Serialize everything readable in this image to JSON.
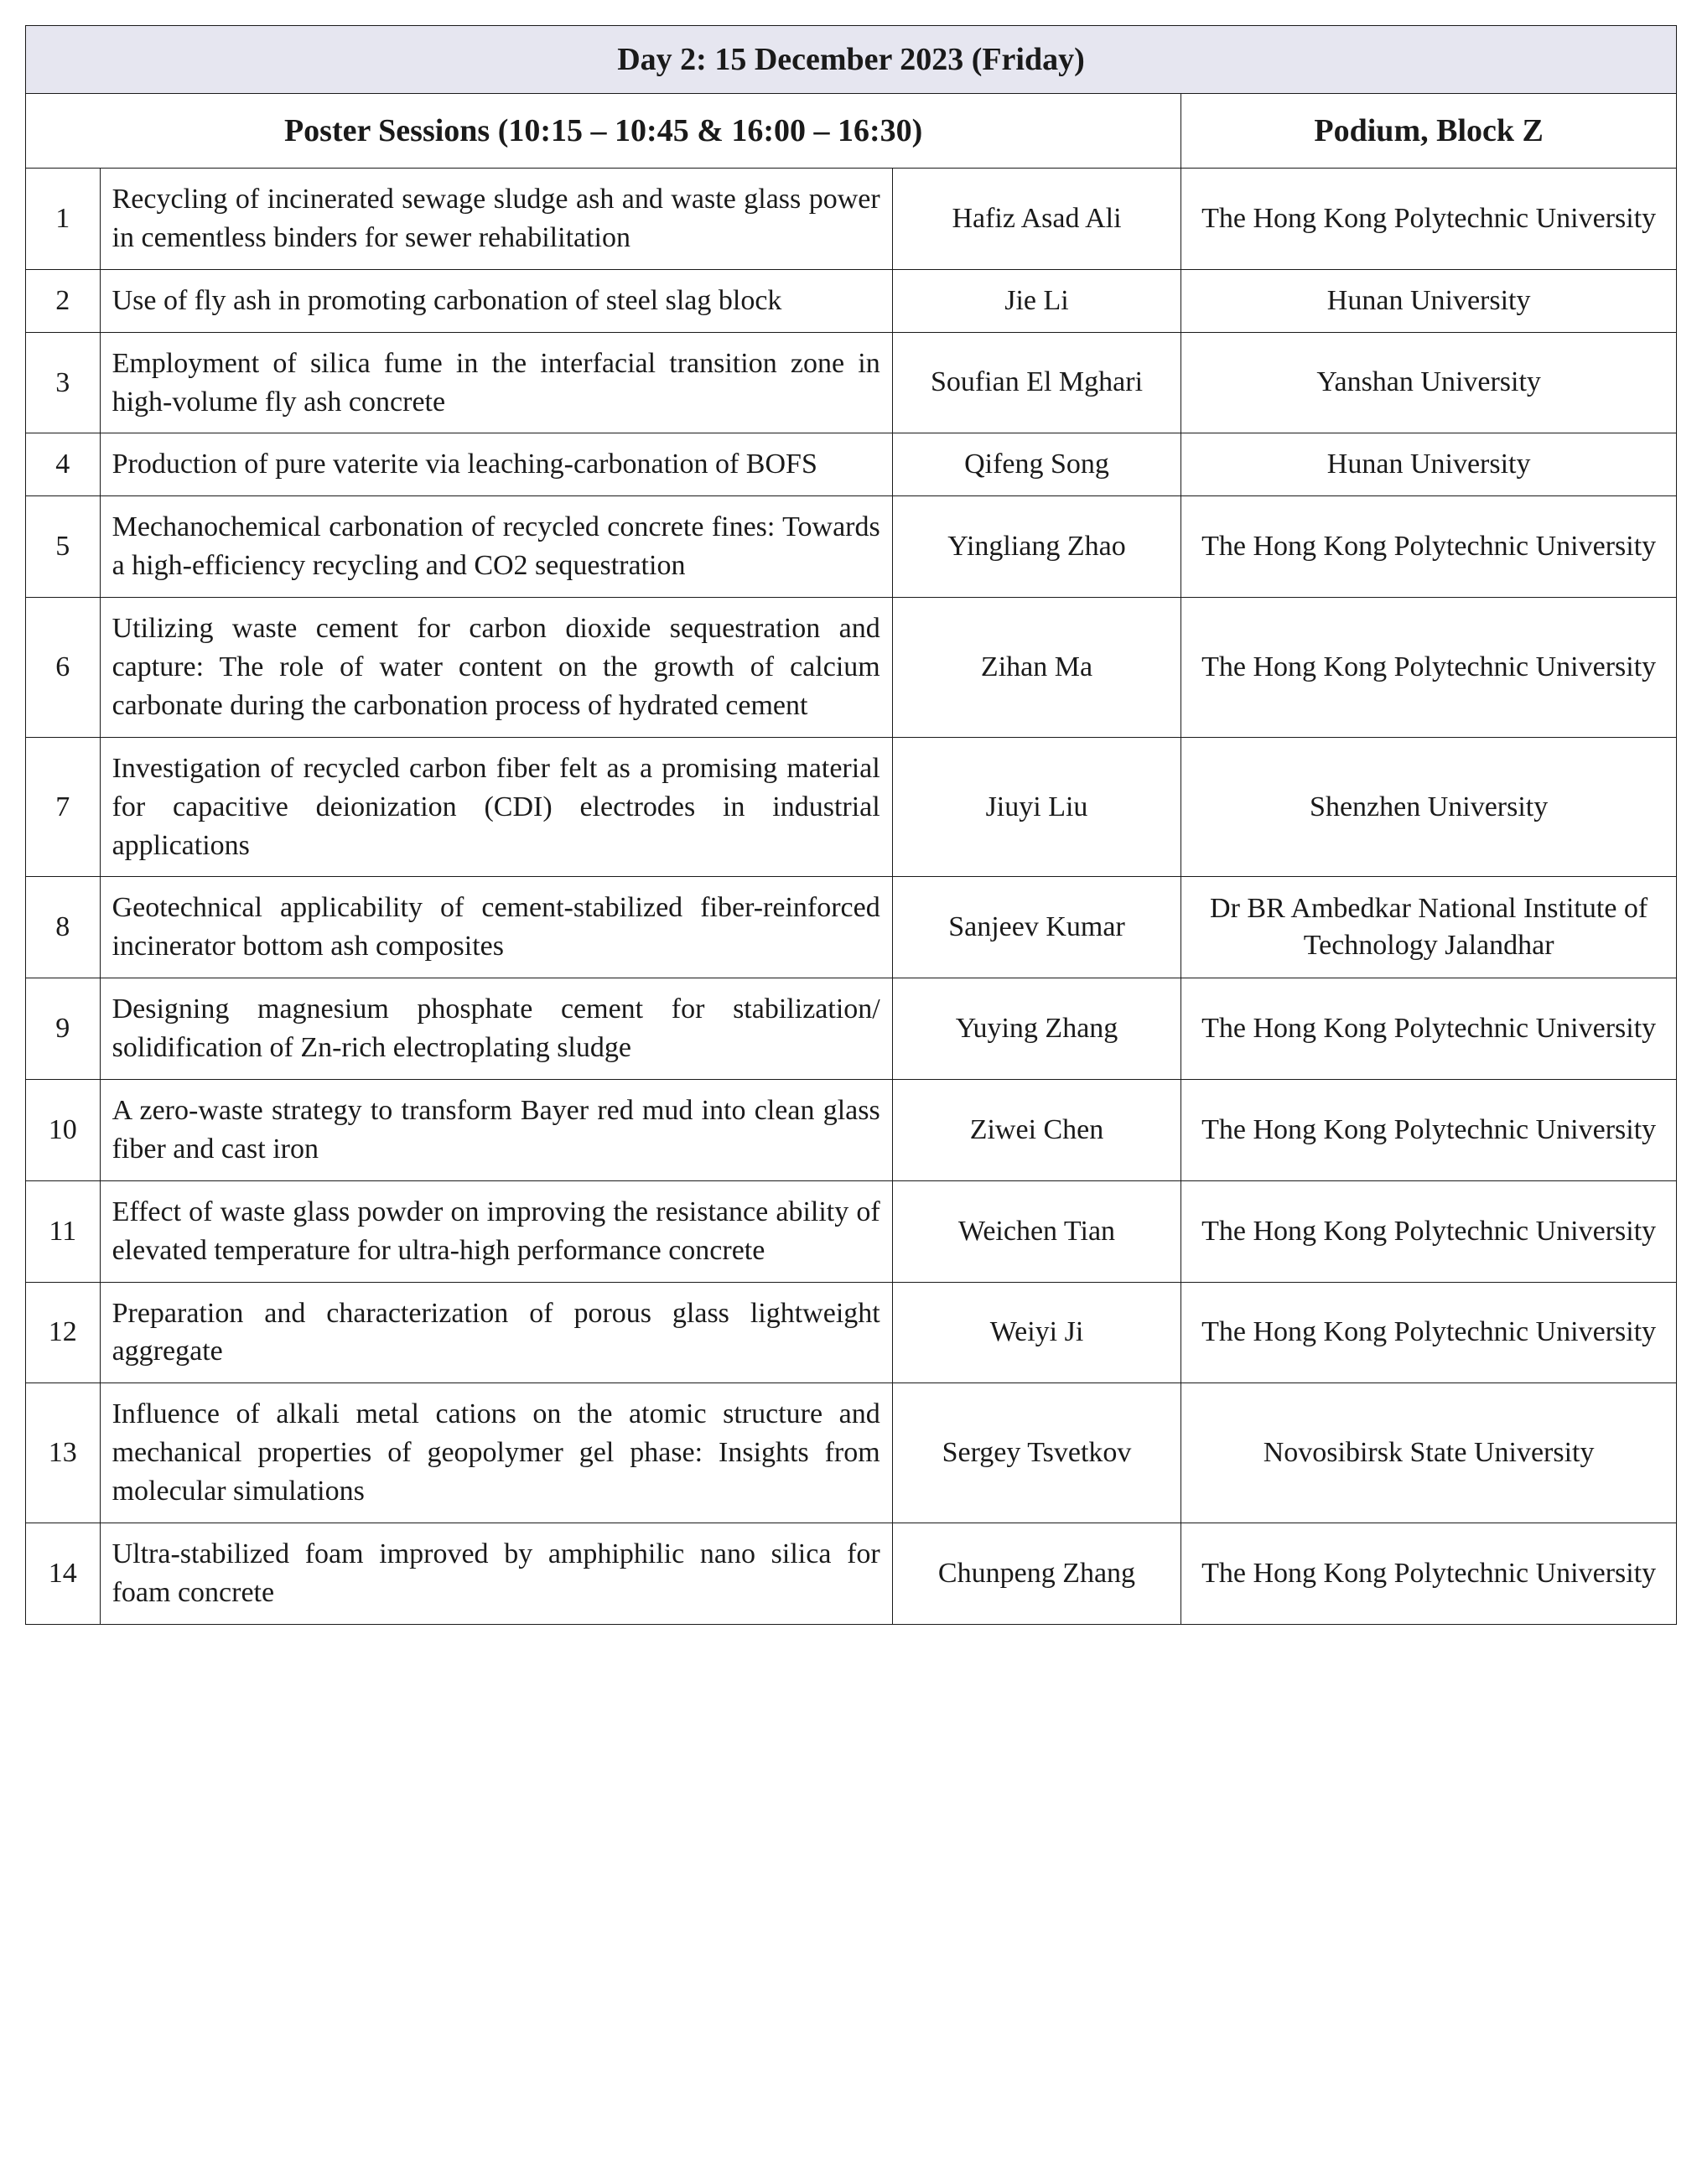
{
  "header": {
    "day_title": "Day 2: 15 December 2023 (Friday)",
    "session_title": "Poster Sessions (10:15 – 10:45 & 16:00 – 16:30)",
    "location": "Podium, Block Z"
  },
  "rows": [
    {
      "num": "1",
      "title": "Recycling of incinerated sewage sludge ash and waste glass power in cementless binders for sewer rehabilitation",
      "author": "Hafiz Asad Ali",
      "affil": "The Hong Kong Polytechnic University"
    },
    {
      "num": "2",
      "title": "Use of fly ash in promoting carbonation of steel slag block",
      "author": "Jie Li",
      "affil": "Hunan University"
    },
    {
      "num": "3",
      "title": "Employment of silica fume in the interfacial transition zone in high-volume fly ash concrete",
      "author": "Soufian El Mghari",
      "affil": "Yanshan University"
    },
    {
      "num": "4",
      "title": "Production of pure vaterite via leaching-carbonation of BOFS",
      "author": "Qifeng Song",
      "affil": "Hunan University"
    },
    {
      "num": "5",
      "title": "Mechanochemical carbonation of recycled concrete fines: Towards a high-efficiency recycling and CO2 sequestration",
      "author": "Yingliang Zhao",
      "affil": "The Hong Kong Polytechnic University"
    },
    {
      "num": "6",
      "title": "Utilizing waste cement for carbon dioxide sequestration and capture: The role of water content on the growth of calcium carbonate during the carbonation process of hydrated cement",
      "author": "Zihan Ma",
      "affil": "The Hong Kong Polytechnic University"
    },
    {
      "num": "7",
      "title": "Investigation of recycled carbon fiber felt as a promising material for capacitive deionization (CDI) electrodes in industrial applications",
      "author": "Jiuyi Liu",
      "affil": "Shenzhen University"
    },
    {
      "num": "8",
      "title": "Geotechnical applicability of cement-stabilized fiber-reinforced incinerator bottom ash composites",
      "author": "Sanjeev Kumar",
      "affil": "Dr BR Ambedkar National Institute of Technology Jalandhar"
    },
    {
      "num": "9",
      "title": "Designing magnesium phosphate cement for stabilization/ solidification of Zn-rich electroplating sludge",
      "author": "Yuying Zhang",
      "affil": "The Hong Kong Polytechnic University"
    },
    {
      "num": "10",
      "title": "A zero-waste strategy to transform Bayer red mud into clean glass fiber and cast iron",
      "author": "Ziwei Chen",
      "affil": "The Hong Kong Polytechnic University"
    },
    {
      "num": "11",
      "title": "Effect of waste glass powder on improving the resistance ability of elevated temperature for ultra-high performance concrete",
      "author": "Weichen Tian",
      "affil": "The Hong Kong Polytechnic University"
    },
    {
      "num": "12",
      "title": "Preparation and characterization of porous glass lightweight aggregate",
      "author": "Weiyi Ji",
      "affil": "The Hong Kong Polytechnic University"
    },
    {
      "num": "13",
      "title": "Influence of alkali metal cations on the atomic structure and mechanical properties of geopolymer gel phase: Insights from molecular simulations",
      "author": "Sergey Tsvetkov",
      "affil": "Novosibirsk State University"
    },
    {
      "num": "14",
      "title": "Ultra-stabilized foam improved by amphiphilic nano silica for foam concrete",
      "author": "Chunpeng Zhang",
      "affil": "The Hong Kong Polytechnic University"
    }
  ]
}
